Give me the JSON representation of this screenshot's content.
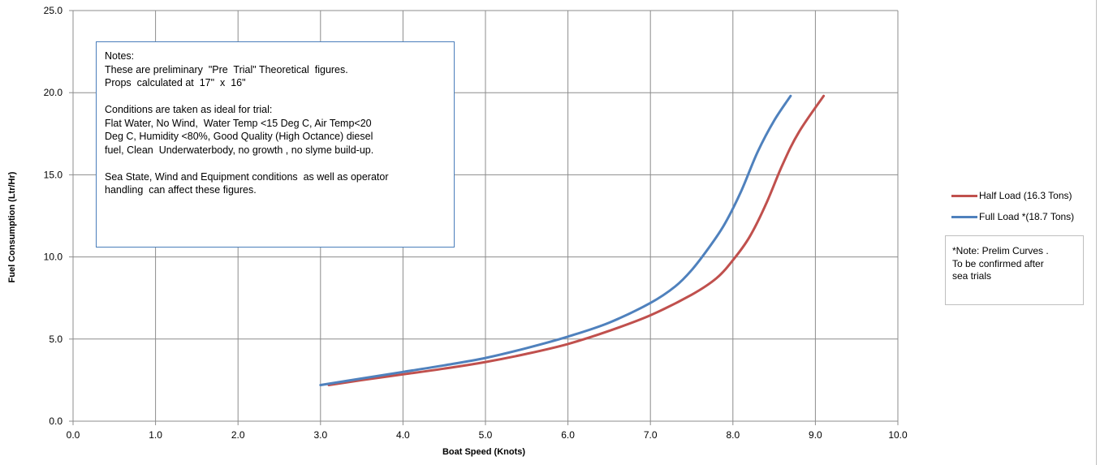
{
  "chart_data": {
    "type": "line",
    "xlabel": "Boat Speed (Knots)",
    "ylabel": "Fuel Consumption (Ltr/Hr)",
    "xlim": [
      0,
      10
    ],
    "ylim": [
      0,
      25
    ],
    "x_ticks": [
      "0.0",
      "1.0",
      "2.0",
      "3.0",
      "4.0",
      "5.0",
      "6.0",
      "7.0",
      "8.0",
      "9.0",
      "10.0"
    ],
    "y_ticks": [
      "0.0",
      "5.0",
      "10.0",
      "15.0",
      "20.0",
      "25.0"
    ],
    "grid": true,
    "legend_position": "right",
    "series": [
      {
        "name": "Half Load (16.3 Tons)",
        "color": "#c0504d",
        "points": [
          [
            3.1,
            2.2
          ],
          [
            3.5,
            2.5
          ],
          [
            4.0,
            2.85
          ],
          [
            4.5,
            3.2
          ],
          [
            5.0,
            3.6
          ],
          [
            5.5,
            4.1
          ],
          [
            6.0,
            4.7
          ],
          [
            6.5,
            5.5
          ],
          [
            7.0,
            6.45
          ],
          [
            7.5,
            7.7
          ],
          [
            7.8,
            8.7
          ],
          [
            8.0,
            9.8
          ],
          [
            8.2,
            11.2
          ],
          [
            8.4,
            13.2
          ],
          [
            8.6,
            15.6
          ],
          [
            8.8,
            17.6
          ],
          [
            9.1,
            19.8
          ]
        ]
      },
      {
        "name": "Full Load *(18.7 Tons)",
        "color": "#4f81bd",
        "points": [
          [
            3.0,
            2.2
          ],
          [
            3.5,
            2.6
          ],
          [
            4.0,
            3.0
          ],
          [
            4.5,
            3.4
          ],
          [
            5.0,
            3.85
          ],
          [
            5.5,
            4.45
          ],
          [
            6.0,
            5.15
          ],
          [
            6.5,
            6.0
          ],
          [
            7.0,
            7.2
          ],
          [
            7.3,
            8.2
          ],
          [
            7.5,
            9.2
          ],
          [
            7.7,
            10.5
          ],
          [
            7.9,
            12.0
          ],
          [
            8.1,
            14.0
          ],
          [
            8.3,
            16.4
          ],
          [
            8.5,
            18.3
          ],
          [
            8.7,
            19.8
          ]
        ]
      }
    ]
  },
  "notes": {
    "lines": [
      "Notes:",
      "These are preliminary  \"Pre  Trial\" Theoretical  figures.",
      "Props  calculated at  17\"  x  16\"",
      "",
      "Conditions are taken as ideal for trial:",
      "Flat Water, No Wind,  Water Temp <15 Deg C, Air Temp<20",
      "Deg C, Humidity <80%, Good Quality (High Octance) diesel",
      "fuel, Clean  Underwaterbody, no growth , no slyme build-up.",
      "",
      "Sea State, Wind and Equipment conditions  as well as operator",
      "handling  can affect these figures."
    ]
  },
  "prelim_note": {
    "lines": [
      "*Note: Prelim Curves .",
      "To be confirmed after",
      "sea trials"
    ]
  }
}
